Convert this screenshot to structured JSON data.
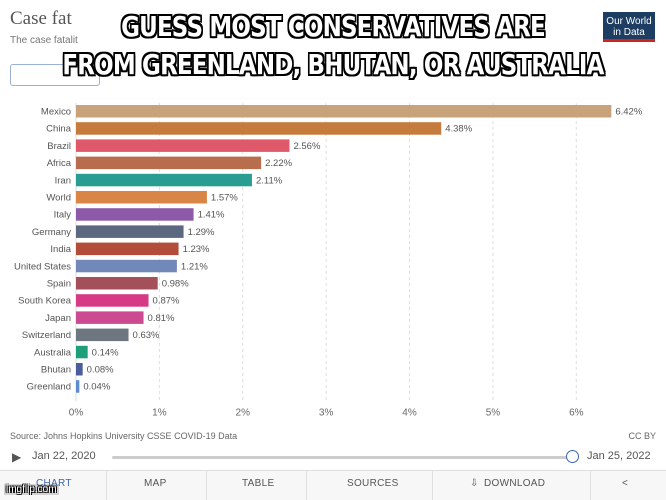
{
  "header": {
    "title": "Case fat",
    "subtitle": "The case fatalit",
    "owid_logo": "Our World in Data"
  },
  "meme": {
    "line1": "GUESS MOST CONSERVATIVES ARE",
    "line2": "FROM GREENLAND, BHUTAN, OR AUSTRALIA"
  },
  "chart_data": {
    "type": "bar",
    "orientation": "horizontal",
    "title": "Case fatality rate",
    "categories": [
      "Mexico",
      "China",
      "Brazil",
      "Africa",
      "Iran",
      "World",
      "Italy",
      "Germany",
      "India",
      "United States",
      "Spain",
      "South Korea",
      "Japan",
      "Switzerland",
      "Australia",
      "Bhutan",
      "Greenland"
    ],
    "values": [
      6.42,
      4.38,
      2.56,
      2.22,
      2.11,
      1.57,
      1.41,
      1.29,
      1.23,
      1.21,
      0.98,
      0.87,
      0.81,
      0.63,
      0.14,
      0.08,
      0.04
    ],
    "value_labels": [
      "6.42%",
      "4.38%",
      "2.56%",
      "2.22%",
      "2.11%",
      "1.57%",
      "1.41%",
      "1.29%",
      "1.23%",
      "1.21%",
      "0.98%",
      "0.87%",
      "0.81%",
      "0.63%",
      "0.14%",
      "0.08%",
      "0.04%"
    ],
    "colors": [
      "#c8a27a",
      "#c57b3b",
      "#e0596a",
      "#b86d4d",
      "#2a9d93",
      "#d98545",
      "#8c5aa6",
      "#5c6880",
      "#b34c38",
      "#7188b8",
      "#a4505a",
      "#d63a86",
      "#cc4a92",
      "#6e7680",
      "#1f9e7a",
      "#4a5e9c",
      "#5b8ccc"
    ],
    "xlim": [
      0,
      6.5
    ],
    "x_ticks": [
      0,
      1,
      2,
      3,
      4,
      5,
      6
    ],
    "x_tick_labels": [
      "0%",
      "1%",
      "2%",
      "3%",
      "4%",
      "5%",
      "6%"
    ],
    "grid": true
  },
  "footer": {
    "source": "Source: Johns Hopkins University CSSE COVID-19 Data",
    "license": "CC BY"
  },
  "timeline": {
    "start": "Jan 22, 2020",
    "end": "Jan 25, 2022",
    "progress": 1.0
  },
  "tabs": {
    "chart": "CHART",
    "map": "MAP",
    "table": "TABLE",
    "sources": "SOURCES",
    "download": "DOWNLOAD"
  },
  "watermark": "imgflip.com",
  "icons": {
    "play": "play-icon",
    "download": "download-icon",
    "share": "share-icon"
  },
  "colors": {
    "accent": "#3a66b0",
    "grid": "#dddddd"
  }
}
